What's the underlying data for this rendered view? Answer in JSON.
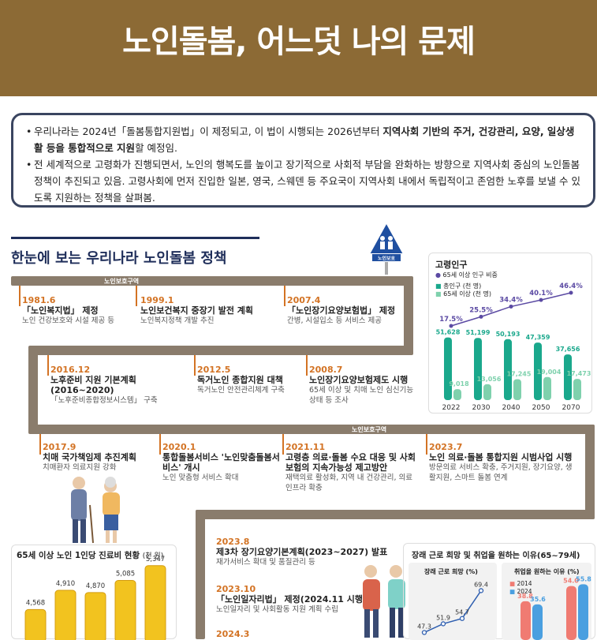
{
  "header": {
    "title": "노인돌봄, 어느덧 나의 문제"
  },
  "intro": {
    "p1_a": "우리나라는 2024년「돌봄통합지원법」이 제정되고, 이 법이 시행되는 2026년부터 ",
    "p1_b": "지역사회 기반의 주거, 건강관리, 요양, 일상생활 등을 통합적으로 지원",
    "p1_c": "할 예정임.",
    "p2": "전 세계적으로 고령화가 진행되면서, 노인의 행복도를 높이고 장기적으로 사회적 부담을 완화하는 방향으로 지역사회 중심의 노인돌봄 정책이 추진되고 있음. 고령사회에 먼저 진입한 일본, 영국, 스웨덴 등 주요국이 지역사회 내에서 독립적이고 존엄한 노후를 보낼 수 있도록 지원하는 정책을 살펴봄."
  },
  "section_title": "한눈에 보는 우리나라 노인돌봄 정책",
  "sign_label": "노인보호",
  "road_label": "노인보호구역",
  "timeline": [
    {
      "date": "1981.6",
      "title": "「노인복지법」 제정",
      "desc": "노인 건강보호와 시설 제공 등"
    },
    {
      "date": "1999.1",
      "title": "노인보건복지 중장기 발전 계획",
      "desc": "노인복지정책 개발 추진"
    },
    {
      "date": "2007.4",
      "title": "「노인장기요양보험법」 제정",
      "desc": "간병, 시설입소 등 서비스 제공"
    },
    {
      "date": "2016.12",
      "title": "노후준비 지원 기본계획(2016~2020)",
      "desc": "「노후준비종합정보시스템」 구축"
    },
    {
      "date": "2012.5",
      "title": "독거노인 종합지원 대책",
      "desc": "독거노인 안전관리체계 구축"
    },
    {
      "date": "2008.7",
      "title": "노인장기요양보험제도 시행",
      "desc": "65세 이상 및 치매 노인 심신기능상태 등 조사"
    },
    {
      "date": "2017.9",
      "title": "치매 국가책임제 추진계획",
      "desc": "치매환자 의료지원 강화"
    },
    {
      "date": "2020.1",
      "title": "통합돌봄서비스 '노인맞춤돌봄서비스' 개시",
      "desc": "노인 맞춤형 서비스 확대"
    },
    {
      "date": "2021.11",
      "title": "고령층 의료·돌봄 수요 대응 및 사회보험의 지속가능성 제고방안",
      "desc": "재택의료 활성화, 지역 내 건강관리, 의료 인프라 확충"
    },
    {
      "date": "2023.7",
      "title": "노인 의료·돌봄 통합지원 시범사업 시행",
      "desc": "방문의료 서비스 확충, 주거지원, 장기요양, 생활지원, 스마트 돌봄 연계"
    },
    {
      "date": "2023.8",
      "title": "제3차 장기요양기본계획(2023~2027) 발표",
      "desc": "재가서비스 확대 및 품질관리 등"
    },
    {
      "date": "2023.10",
      "title": "「노인일자리법」 제정(2024.11 시행)",
      "desc": "노인일자리 및 사회활동 지원 계획 수립"
    },
    {
      "date": "2024.3",
      "title": "",
      "desc": ""
    }
  ],
  "pop_chart": {
    "title": "고령인구",
    "legend_ratio": "65세 이상 인구 비중",
    "legend_total": "총인구 (천 명)",
    "legend_elder": "65세 이상 (천 명)",
    "colors": {
      "total": "#1aa88c",
      "elder": "#7fd1ad",
      "ratio": "#5b4aa3"
    }
  },
  "chart_data": [
    {
      "type": "bar",
      "title": "고령인구",
      "categories": [
        "2022",
        "2030",
        "2040",
        "2050",
        "2070"
      ],
      "series": [
        {
          "name": "총인구 (천 명)",
          "values": [
            51628,
            51199,
            50193,
            47359,
            37656
          ]
        },
        {
          "name": "65세 이상 (천 명)",
          "values": [
            9018,
            13056,
            17245,
            19004,
            17473
          ]
        },
        {
          "name": "65세 이상 인구 비중",
          "values": [
            17.5,
            25.5,
            34.4,
            40.1,
            46.4
          ]
        }
      ],
      "labels_total": [
        "51,628",
        "51,199",
        "50,193",
        "47,359",
        "37,656"
      ],
      "labels_elder": [
        "9,018",
        "13,056",
        "17,245",
        "19,004",
        "17,473"
      ],
      "labels_ratio": [
        "17.5%",
        "25.5%",
        "34.4%",
        "40.1%",
        "46.4%"
      ]
    },
    {
      "type": "bar",
      "title": "65세 이상 노인 1인당 진료비 현황",
      "unit": "(천 원)",
      "values": [
        4568,
        4910,
        4870,
        5085,
        5347
      ],
      "labels": [
        "4,568",
        "4,910",
        "4,870",
        "5,085",
        "5,347"
      ]
    },
    {
      "type": "line",
      "title": "장래 근로 희망 및 취업을 원하는 이유(65~79세)",
      "subtitle": "장래 근로 희망",
      "unit": "(%)",
      "values": [
        47.3,
        51.9,
        54.7,
        69.4
      ],
      "labels": [
        "47.3",
        "51.9",
        "54.7",
        "69.4"
      ]
    },
    {
      "type": "bar",
      "subtitle": "취업을 원하는 이유",
      "unit": "(%)",
      "series": [
        {
          "name": "2014",
          "values": [
            38.8,
            54.0
          ]
        },
        {
          "name": "2024",
          "values": [
            35.6,
            55.8
          ]
        }
      ],
      "labels_2014": [
        "38.8",
        "54.0"
      ],
      "labels_2024": [
        "35.6",
        "55.8"
      ],
      "colors": {
        "2014": "#f07b72",
        "2024": "#4a9fe0"
      }
    }
  ]
}
